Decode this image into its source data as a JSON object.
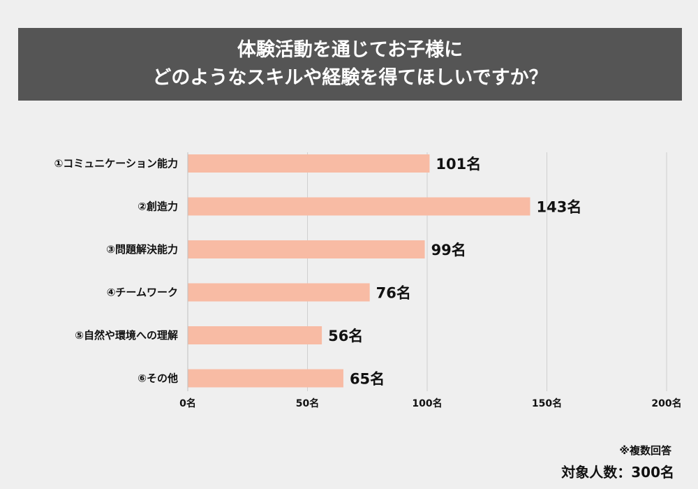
{
  "title": {
    "line1": "体験活動を通じてお子様に",
    "line2": "どのようなスキルや経験を得てほしいですか？"
  },
  "chart_data": {
    "type": "bar",
    "orientation": "horizontal",
    "categories": [
      "①コミュニケーション能力",
      "②創造力",
      "③問題解決能力",
      "④チームワーク",
      "⑤自然や環境への理解",
      "⑥その他"
    ],
    "values": [
      101,
      143,
      99,
      76,
      56,
      65
    ],
    "value_labels": [
      "101名",
      "143名",
      "99名",
      "76名",
      "56名",
      "65名"
    ],
    "xlim": [
      0,
      200
    ],
    "x_ticks": [
      0,
      50,
      100,
      150,
      200
    ],
    "x_tick_labels": [
      "0名",
      "50名",
      "100名",
      "150名",
      "200名"
    ],
    "grid": true,
    "bar_color": "#f8bba4"
  },
  "footer": {
    "note": "※複数回答",
    "total": "対象人数：300名"
  }
}
